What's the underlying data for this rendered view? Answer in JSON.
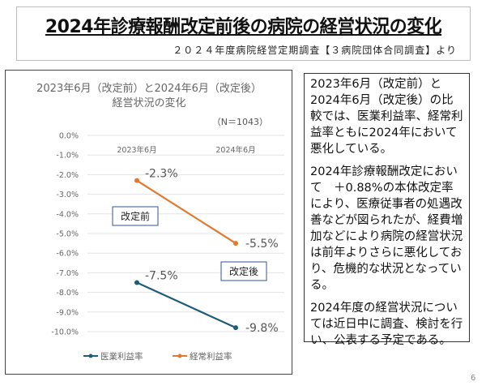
{
  "header": {
    "title": "2024年診療報酬改定前後の病院の経営状況の変化",
    "subtitle": "２０２４年度病院経営定期調査【３病院団体合同調査】より"
  },
  "chart_data": {
    "type": "line",
    "title": [
      "2023年6月（改定前）と2024年6月（改定後）",
      "経営状況の変化"
    ],
    "annotation_n": "（N＝1043）",
    "categories": [
      "2023年6月",
      "2024年6月"
    ],
    "yticks": [
      "0.0%",
      "-1.0%",
      "-2.0%",
      "-3.0%",
      "-4.0%",
      "-5.0%",
      "-6.0%",
      "-7.0%",
      "-8.0%",
      "-9.0%",
      "-10.0%"
    ],
    "ylim": [
      -10,
      0
    ],
    "grid": true,
    "legend_position": "bottom",
    "series": [
      {
        "name": "医業利益率",
        "values": [
          -7.5,
          -9.8
        ],
        "labels": [
          "-7.5%",
          "-9.8%"
        ],
        "color": "#1f5c7a"
      },
      {
        "name": "経常利益率",
        "values": [
          -2.3,
          -5.5
        ],
        "labels": [
          "-2.3%",
          "-5.5%"
        ],
        "color": "#e2792f"
      }
    ],
    "callouts": [
      "改定前",
      "改定後"
    ]
  },
  "notes": [
    [
      "2023年6月（改定前）と",
      "2024年6月（改定後）の比",
      "較では、医業利益率、経常利",
      "益率ともに2024年において",
      "悪化している。"
    ],
    [
      "2024年診療報酬改定におい",
      "て　＋0.88%の本体改定率",
      "により、医療従事者の処遇改",
      "善などが図られたが、経費増",
      "加などにより病院の経営状況",
      "は前年よりさらに悪化してお",
      "り、危機的な状況となってい",
      "る。"
    ],
    [
      "2024年度の経営状況につい",
      "ては近日中に調査、検討を行",
      "い、公表する予定である。"
    ]
  ],
  "page_number": "6"
}
